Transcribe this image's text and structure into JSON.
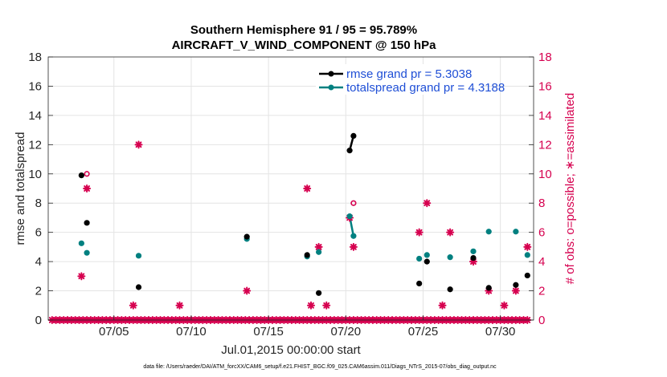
{
  "chart_data": {
    "type": "scatter",
    "title_line1": "Southern Hemisphere 91 / 95 = 95.789%",
    "title_line2": "AIRCRAFT_V_WIND_COMPONENT @ 150 hPa",
    "xlabel": "Jul.01,2015 00:00:00 start",
    "ylabel_left": "rmse and totalspread",
    "ylabel_right": "# of obs: o=possible; ∗=assimilated",
    "footer": "data file: /Users/raeder/DAI/ATM_forcXX/CAM6_setup/f.e21.FHIST_BGC.f09_025.CAM6assim.011/Diags_NTrS_2015-07/obs_diag_output.nc",
    "xlim": [
      0.75,
      32.15
    ],
    "ylim": [
      0,
      18
    ],
    "y_ticks": [
      "0",
      "2",
      "4",
      "6",
      "8",
      "10",
      "12",
      "14",
      "16",
      "18"
    ],
    "x_ticks": [
      {
        "day": 5,
        "label": "07/05"
      },
      {
        "day": 10,
        "label": "07/10"
      },
      {
        "day": 15,
        "label": "07/15"
      },
      {
        "day": 20,
        "label": "07/20"
      },
      {
        "day": 25,
        "label": "07/25"
      },
      {
        "day": 30,
        "label": "07/30"
      }
    ],
    "colors": {
      "rmse": "#000000",
      "spread": "#008080",
      "obs": "#d6004f",
      "legend_text": "#1f4fd6"
    },
    "legend": [
      {
        "key": "rmse",
        "label": "rmse grand pr = 5.3038"
      },
      {
        "key": "spread",
        "label": "totalspread grand pr = 4.3188"
      }
    ],
    "rmse": [
      {
        "x": 2.9,
        "y": 9.9
      },
      {
        "x": 3.25,
        "y": 6.65
      },
      {
        "x": 6.6,
        "y": 2.25
      },
      {
        "x": 13.6,
        "y": 5.7
      },
      {
        "x": 17.5,
        "y": 4.45
      },
      {
        "x": 18.25,
        "y": 1.85
      },
      {
        "x": 20.25,
        "y": 11.6
      },
      {
        "x": 20.5,
        "y": 12.6
      },
      {
        "x": 24.75,
        "y": 2.5
      },
      {
        "x": 25.25,
        "y": 4.0
      },
      {
        "x": 26.75,
        "y": 2.1
      },
      {
        "x": 28.25,
        "y": 4.25
      },
      {
        "x": 29.25,
        "y": 2.2
      },
      {
        "x": 31.0,
        "y": 2.4
      },
      {
        "x": 31.75,
        "y": 3.05
      }
    ],
    "rmse_line": [
      [
        20.25,
        11.6
      ],
      [
        20.5,
        12.6
      ]
    ],
    "spread": [
      {
        "x": 2.9,
        "y": 5.25
      },
      {
        "x": 3.25,
        "y": 4.6
      },
      {
        "x": 6.6,
        "y": 4.4
      },
      {
        "x": 13.6,
        "y": 5.55
      },
      {
        "x": 17.5,
        "y": 4.35
      },
      {
        "x": 18.25,
        "y": 4.65
      },
      {
        "x": 20.25,
        "y": 7.1
      },
      {
        "x": 20.5,
        "y": 5.75
      },
      {
        "x": 24.75,
        "y": 4.2
      },
      {
        "x": 25.25,
        "y": 4.45
      },
      {
        "x": 26.75,
        "y": 4.3
      },
      {
        "x": 28.25,
        "y": 4.7
      },
      {
        "x": 29.25,
        "y": 6.05
      },
      {
        "x": 31.0,
        "y": 6.05
      },
      {
        "x": 31.75,
        "y": 4.45
      }
    ],
    "spread_line": [
      [
        20.25,
        7.1
      ],
      [
        20.5,
        5.75
      ]
    ],
    "obs_possible": [
      {
        "x": 3.25,
        "y": 10
      },
      {
        "x": 20.5,
        "y": 8
      }
    ],
    "obs_assimilated_nonzero": [
      {
        "x": 2.9,
        "y": 3
      },
      {
        "x": 3.25,
        "y": 9
      },
      {
        "x": 6.25,
        "y": 1
      },
      {
        "x": 6.6,
        "y": 12
      },
      {
        "x": 9.25,
        "y": 1
      },
      {
        "x": 13.6,
        "y": 2
      },
      {
        "x": 17.5,
        "y": 9
      },
      {
        "x": 17.75,
        "y": 1
      },
      {
        "x": 18.25,
        "y": 5
      },
      {
        "x": 18.75,
        "y": 1
      },
      {
        "x": 20.25,
        "y": 7
      },
      {
        "x": 20.5,
        "y": 5
      },
      {
        "x": 24.75,
        "y": 6
      },
      {
        "x": 25.25,
        "y": 8
      },
      {
        "x": 26.25,
        "y": 1
      },
      {
        "x": 26.75,
        "y": 6
      },
      {
        "x": 28.25,
        "y": 4
      },
      {
        "x": 29.25,
        "y": 2
      },
      {
        "x": 30.25,
        "y": 1
      },
      {
        "x": 31.0,
        "y": 2
      },
      {
        "x": 31.75,
        "y": 5
      }
    ],
    "obs_zero_start": 1.0,
    "obs_zero_end": 31.75,
    "obs_zero_step": 0.25
  }
}
